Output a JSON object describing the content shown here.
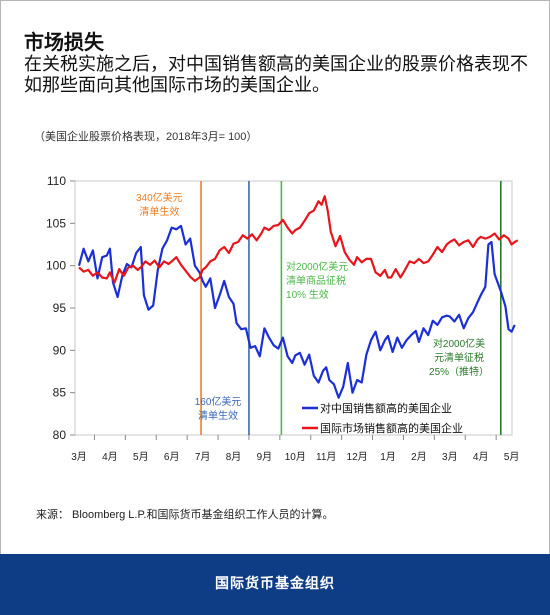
{
  "header": {
    "title": "市场损失",
    "subtitle": "在关税实施之后，对中国销售额高的美国企业的股票价格表现不如那些面向其他国际市场的美国企业。"
  },
  "chart_note": "（美国企业股票价格表现，2018年3月= 100）",
  "source": "来源：  Bloomberg L.P.和国际货币基金组织工作人员的计算。",
  "footer": {
    "org": "国际货币基金组织"
  },
  "colors": {
    "china_series": "#1b2fd6",
    "intl_series": "#e8141b",
    "annot_orange": "#ef7d22",
    "annot_blue": "#3a69b5",
    "annot_green": "#4cb848",
    "annot_darkgreen": "#2b7a2b",
    "footer_bg": "#0e3d86"
  },
  "chart_data": {
    "type": "line",
    "ylim": [
      80,
      110
    ],
    "yticks": [
      80,
      85,
      90,
      95,
      100,
      105,
      110
    ],
    "xlim": [
      0,
      14.3
    ],
    "months": [
      {
        "label": "3月",
        "x": 0
      },
      {
        "label": "4月",
        "x": 1
      },
      {
        "label": "5月",
        "x": 2
      },
      {
        "label": "6月",
        "x": 3
      },
      {
        "label": "7月",
        "x": 4
      },
      {
        "label": "8月",
        "x": 5
      },
      {
        "label": "9月",
        "x": 6
      },
      {
        "label": "10月",
        "x": 7
      },
      {
        "label": "11月",
        "x": 8
      },
      {
        "label": "12月",
        "x": 9
      },
      {
        "label": "1月",
        "x": 10
      },
      {
        "label": "2月",
        "x": 11
      },
      {
        "label": "3月",
        "x": 12
      },
      {
        "label": "4月",
        "x": 13
      },
      {
        "label": "5月",
        "x": 14
      }
    ],
    "series": [
      {
        "name": "对中国销售额高的美国企业",
        "color": "#1b2fd6",
        "points": [
          [
            0,
            100
          ],
          [
            0.15,
            102
          ],
          [
            0.3,
            100.5
          ],
          [
            0.45,
            101.8
          ],
          [
            0.6,
            98.5
          ],
          [
            0.75,
            101
          ],
          [
            0.9,
            101.2
          ],
          [
            1.0,
            102
          ],
          [
            1.1,
            98
          ],
          [
            1.25,
            96.3
          ],
          [
            1.4,
            98.8
          ],
          [
            1.55,
            100.2
          ],
          [
            1.7,
            99.8
          ],
          [
            1.85,
            101.5
          ],
          [
            2.0,
            102.2
          ],
          [
            2.1,
            96.5
          ],
          [
            2.25,
            94.8
          ],
          [
            2.4,
            95.3
          ],
          [
            2.55,
            99.5
          ],
          [
            2.7,
            102
          ],
          [
            2.85,
            103
          ],
          [
            3.0,
            104.5
          ],
          [
            3.15,
            104.3
          ],
          [
            3.3,
            104.7
          ],
          [
            3.45,
            102.5
          ],
          [
            3.6,
            103.2
          ],
          [
            3.75,
            100
          ],
          [
            3.9,
            99.2
          ],
          [
            4.0,
            98.2
          ],
          [
            4.1,
            97.5
          ],
          [
            4.25,
            98.5
          ],
          [
            4.4,
            95
          ],
          [
            4.55,
            96.5
          ],
          [
            4.7,
            98.2
          ],
          [
            4.85,
            96.3
          ],
          [
            5.0,
            95.5
          ],
          [
            5.1,
            93.2
          ],
          [
            5.25,
            92.5
          ],
          [
            5.4,
            92.6
          ],
          [
            5.55,
            90.3
          ],
          [
            5.7,
            90.5
          ],
          [
            5.85,
            89.3
          ],
          [
            6.0,
            92.6
          ],
          [
            6.15,
            91.5
          ],
          [
            6.3,
            90.6
          ],
          [
            6.45,
            90.2
          ],
          [
            6.6,
            91.5
          ],
          [
            6.75,
            89.3
          ],
          [
            6.9,
            88.5
          ],
          [
            7.0,
            89.4
          ],
          [
            7.15,
            89.7
          ],
          [
            7.3,
            88.3
          ],
          [
            7.45,
            89.5
          ],
          [
            7.6,
            87
          ],
          [
            7.75,
            86.2
          ],
          [
            7.9,
            87.6
          ],
          [
            8.0,
            88
          ],
          [
            8.1,
            86.5
          ],
          [
            8.25,
            86
          ],
          [
            8.4,
            84.4
          ],
          [
            8.55,
            85.7
          ],
          [
            8.7,
            88.5
          ],
          [
            8.85,
            85
          ],
          [
            9.0,
            86.5
          ],
          [
            9.15,
            86.2
          ],
          [
            9.3,
            89.5
          ],
          [
            9.45,
            91.2
          ],
          [
            9.6,
            92.2
          ],
          [
            9.75,
            90
          ],
          [
            9.9,
            91.2
          ],
          [
            10.0,
            91.7
          ],
          [
            10.15,
            89.8
          ],
          [
            10.3,
            91.5
          ],
          [
            10.45,
            90.3
          ],
          [
            10.6,
            91.2
          ],
          [
            10.75,
            91.8
          ],
          [
            10.9,
            92.3
          ],
          [
            11.0,
            91
          ],
          [
            11.15,
            92.6
          ],
          [
            11.3,
            91.8
          ],
          [
            11.45,
            93.5
          ],
          [
            11.6,
            93
          ],
          [
            11.75,
            93.9
          ],
          [
            11.9,
            94.1
          ],
          [
            12.0,
            94
          ],
          [
            12.15,
            93.4
          ],
          [
            12.3,
            94.2
          ],
          [
            12.45,
            92.6
          ],
          [
            12.6,
            93.8
          ],
          [
            12.75,
            94.5
          ],
          [
            12.9,
            95.7
          ],
          [
            13.0,
            96.5
          ],
          [
            13.15,
            97.5
          ],
          [
            13.25,
            102.5
          ],
          [
            13.35,
            102.8
          ],
          [
            13.45,
            99
          ],
          [
            13.55,
            98
          ],
          [
            13.65,
            97
          ],
          [
            13.8,
            95.2
          ],
          [
            13.9,
            92.5
          ],
          [
            14.0,
            92.2
          ],
          [
            14.1,
            93
          ]
        ]
      },
      {
        "name": "国际市场销售额高的美国企业",
        "color": "#e8141b",
        "points": [
          [
            0,
            99.8
          ],
          [
            0.15,
            99.3
          ],
          [
            0.3,
            99.5
          ],
          [
            0.45,
            98.8
          ],
          [
            0.6,
            99.2
          ],
          [
            0.75,
            98.6
          ],
          [
            0.9,
            98.5
          ],
          [
            1.0,
            99.2
          ],
          [
            1.15,
            98
          ],
          [
            1.3,
            99.6
          ],
          [
            1.45,
            98.8
          ],
          [
            1.6,
            99.8
          ],
          [
            1.75,
            100
          ],
          [
            1.9,
            99.5
          ],
          [
            2.0,
            99.8
          ],
          [
            2.15,
            100.5
          ],
          [
            2.3,
            100.1
          ],
          [
            2.45,
            100.6
          ],
          [
            2.6,
            99.8
          ],
          [
            2.75,
            100.5
          ],
          [
            2.9,
            100.2
          ],
          [
            3.0,
            100.5
          ],
          [
            3.15,
            101
          ],
          [
            3.3,
            100.1
          ],
          [
            3.45,
            99.4
          ],
          [
            3.6,
            98.7
          ],
          [
            3.75,
            98.2
          ],
          [
            3.9,
            98.6
          ],
          [
            4.0,
            99.5
          ],
          [
            4.1,
            99.8
          ],
          [
            4.25,
            100.5
          ],
          [
            4.4,
            100.8
          ],
          [
            4.55,
            101.8
          ],
          [
            4.7,
            102.2
          ],
          [
            4.85,
            101.5
          ],
          [
            5.0,
            102.6
          ],
          [
            5.15,
            102.8
          ],
          [
            5.3,
            103.6
          ],
          [
            5.45,
            103.2
          ],
          [
            5.6,
            103.7
          ],
          [
            5.75,
            103
          ],
          [
            5.9,
            103.8
          ],
          [
            6.0,
            104.5
          ],
          [
            6.15,
            104.2
          ],
          [
            6.3,
            104.7
          ],
          [
            6.45,
            104.8
          ],
          [
            6.6,
            105.4
          ],
          [
            6.75,
            104.5
          ],
          [
            6.9,
            103.8
          ],
          [
            7.0,
            104.2
          ],
          [
            7.15,
            104.5
          ],
          [
            7.3,
            105.3
          ],
          [
            7.45,
            106.2
          ],
          [
            7.6,
            106.5
          ],
          [
            7.75,
            107.6
          ],
          [
            7.85,
            107.2
          ],
          [
            7.95,
            108.2
          ],
          [
            8.05,
            106.5
          ],
          [
            8.15,
            104
          ],
          [
            8.3,
            102.3
          ],
          [
            8.45,
            103.5
          ],
          [
            8.6,
            101.6
          ],
          [
            8.75,
            100.7
          ],
          [
            8.9,
            100.1
          ],
          [
            9.0,
            101
          ],
          [
            9.15,
            100.4
          ],
          [
            9.3,
            100.8
          ],
          [
            9.45,
            100.8
          ],
          [
            9.6,
            99.2
          ],
          [
            9.75,
            98.8
          ],
          [
            9.9,
            99.5
          ],
          [
            10.0,
            98.6
          ],
          [
            10.1,
            98.6
          ],
          [
            10.25,
            99.6
          ],
          [
            10.4,
            98.6
          ],
          [
            10.55,
            99.5
          ],
          [
            10.7,
            100.5
          ],
          [
            10.85,
            100.3
          ],
          [
            11.0,
            100.8
          ],
          [
            11.15,
            100.3
          ],
          [
            11.3,
            100.5
          ],
          [
            11.45,
            101.3
          ],
          [
            11.6,
            102.2
          ],
          [
            11.75,
            101.6
          ],
          [
            11.9,
            102.5
          ],
          [
            12.0,
            102.8
          ],
          [
            12.15,
            103.1
          ],
          [
            12.3,
            102.4
          ],
          [
            12.45,
            102.8
          ],
          [
            12.6,
            103
          ],
          [
            12.75,
            102.2
          ],
          [
            12.9,
            103.1
          ],
          [
            13.0,
            103.4
          ],
          [
            13.15,
            103.2
          ],
          [
            13.3,
            103.4
          ],
          [
            13.45,
            103.8
          ],
          [
            13.6,
            103.1
          ],
          [
            13.75,
            103.6
          ],
          [
            13.9,
            103.2
          ],
          [
            14.0,
            102.5
          ],
          [
            14.1,
            102.8
          ],
          [
            14.2,
            103
          ]
        ]
      }
    ],
    "event_lines": [
      {
        "x": 3.95,
        "color": "#ef7d22",
        "label": [
          "340亿美元",
          "清单生效"
        ],
        "label_anchor": "top",
        "label_x": 2.6
      },
      {
        "x": 5.5,
        "color": "#3a69b5",
        "label": [
          "160亿美元",
          "清单生效"
        ],
        "label_anchor": "bottom",
        "label_x": 4.5
      },
      {
        "x": 6.55,
        "color": "#4cb848",
        "label": [
          "对2000亿美元",
          "清单商品征税",
          "10% 生效"
        ],
        "label_anchor": "middle",
        "label_x": 6.7
      },
      {
        "x": 13.65,
        "color": "#2b7a2b",
        "label": [
          "对2000亿美",
          "元清单征税",
          "25%（推特）"
        ],
        "label_anchor": "middle-low",
        "label_x": 12.3
      }
    ],
    "legend": {
      "placement": "lower-right",
      "entries": [
        {
          "label": "对中国销售额高的美国企业",
          "color": "#1b2fd6"
        },
        {
          "label": "国际市场销售额高的美国企业",
          "color": "#e8141b"
        }
      ]
    }
  }
}
